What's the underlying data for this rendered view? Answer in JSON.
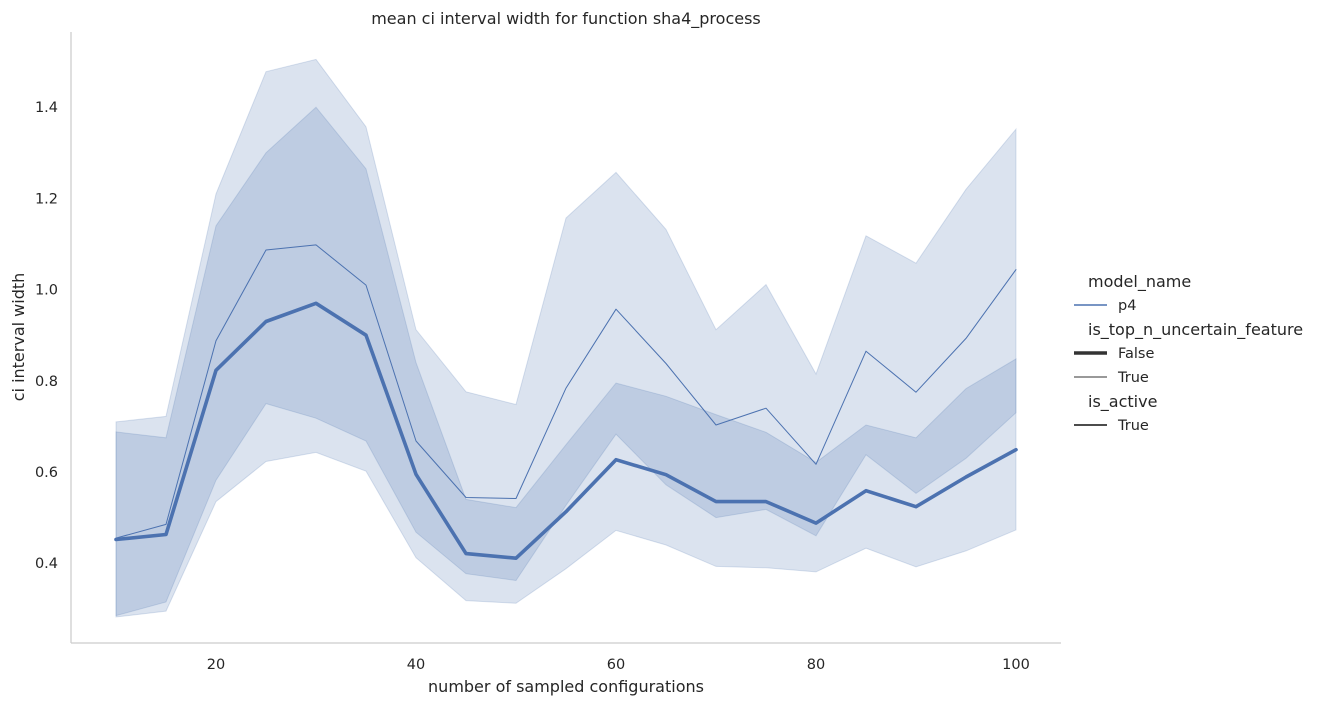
{
  "chart_data": {
    "type": "line",
    "title": "mean ci interval width for function sha4_process",
    "xlabel": "number of sampled configurations",
    "ylabel": "ci interval width",
    "xlim": [
      5.5,
      104.5
    ],
    "ylim": [
      0.225,
      1.565
    ],
    "xticks": [
      20,
      40,
      60,
      80,
      100
    ],
    "yticks": [
      0.4,
      0.6,
      0.8,
      1.0,
      1.2,
      1.4
    ],
    "ytick_labels": [
      "0.4",
      "0.6",
      "0.8",
      "1.0",
      "1.2",
      "1.4"
    ],
    "grid": false,
    "x": [
      10,
      15,
      20,
      25,
      30,
      35,
      40,
      45,
      50,
      55,
      60,
      65,
      70,
      75,
      80,
      85,
      90,
      95,
      100
    ],
    "series": [
      {
        "is_top_n_uncertain_feature": "False",
        "values": [
          0.452,
          0.463,
          0.823,
          0.93,
          0.97,
          0.9,
          0.595,
          0.421,
          0.411,
          0.513,
          0.627,
          0.594,
          0.535,
          0.535,
          0.488,
          0.559,
          0.524,
          0.589,
          0.649
        ],
        "ci_low": [
          0.285,
          0.315,
          0.582,
          0.75,
          0.718,
          0.668,
          0.468,
          0.377,
          0.362,
          0.527,
          0.683,
          0.572,
          0.5,
          0.518,
          0.46,
          0.638,
          0.553,
          0.63,
          0.73
        ],
        "ci_high": [
          0.688,
          0.675,
          1.14,
          1.3,
          1.4,
          1.265,
          0.84,
          0.54,
          0.522,
          0.66,
          0.795,
          0.766,
          0.726,
          0.687,
          0.621,
          0.703,
          0.675,
          0.783,
          0.848
        ]
      },
      {
        "is_top_n_uncertain_feature": "True",
        "values": [
          0.455,
          0.485,
          0.888,
          1.087,
          1.098,
          1.01,
          0.668,
          0.544,
          0.542,
          0.784,
          0.957,
          0.838,
          0.703,
          0.74,
          0.617,
          0.865,
          0.775,
          0.893,
          1.044
        ],
        "ci_low": [
          0.282,
          0.295,
          0.535,
          0.623,
          0.643,
          0.602,
          0.412,
          0.318,
          0.312,
          0.388,
          0.472,
          0.44,
          0.393,
          0.39,
          0.381,
          0.433,
          0.392,
          0.427,
          0.473
        ],
        "ci_high": [
          0.71,
          0.722,
          1.21,
          1.478,
          1.505,
          1.357,
          0.912,
          0.776,
          0.748,
          1.157,
          1.257,
          1.132,
          0.912,
          1.011,
          0.815,
          1.118,
          1.058,
          1.22,
          1.352
        ]
      }
    ],
    "legend": {
      "placement": "center right, outside plot",
      "sections": [
        {
          "title": "model_name",
          "entries": [
            {
              "label": "p4",
              "style": "colored-thin"
            }
          ]
        },
        {
          "title": "is_top_n_uncertain_feature",
          "entries": [
            {
              "label": "False",
              "style": "dark-thick"
            },
            {
              "label": "True",
              "style": "dark-thin"
            }
          ]
        },
        {
          "title": "is_active",
          "entries": [
            {
              "label": "True",
              "style": "dark-medium"
            }
          ]
        }
      ]
    },
    "colors": {
      "line": "#4c72b0",
      "band": "#4c72b0",
      "axis": "#cccccc",
      "text": "#262626",
      "legend_dark": "#333333"
    }
  }
}
